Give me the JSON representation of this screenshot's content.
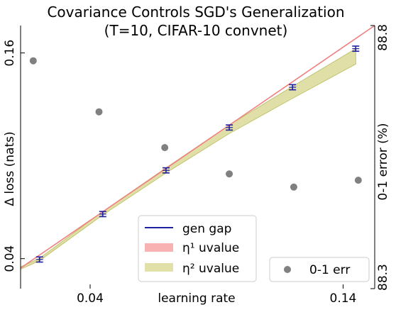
{
  "chart_data": {
    "type": "line",
    "title": "Covariance Controls SGD's Generalization",
    "subtitle": "(T=10, CIFAR-10 convnet)",
    "xlabel": "learning rate",
    "ylabel_left": "Δ loss (nats)",
    "ylabel_right": "0-1 error (%)",
    "xlim": [
      0.0125,
      0.1525
    ],
    "ylim_left": [
      0.0225,
      0.176
    ],
    "ylim_right": [
      88.3,
      88.8
    ],
    "x_ticks": [
      {
        "value": 0.04,
        "label": "0.04"
      },
      {
        "value": 0.14,
        "label": "0.14"
      }
    ],
    "y_ticks_left": [
      {
        "value": 0.04,
        "label": "0.04"
      },
      {
        "value": 0.16,
        "label": "0.16"
      }
    ],
    "y_ticks_right": [
      {
        "value": 88.3,
        "label": "88.3"
      },
      {
        "value": 88.8,
        "label": "88.8"
      }
    ],
    "legend": {
      "gen_gap": "gen gap",
      "eta1": "η¹ uvalue",
      "eta2": "η² uvalue",
      "err": "0-1 err"
    },
    "gen_gap": {
      "x": [
        0.02,
        0.045,
        0.07,
        0.095,
        0.12,
        0.145
      ],
      "y": [
        0.0395,
        0.066,
        0.0915,
        0.1165,
        0.14,
        0.1625
      ],
      "err": [
        0.0015,
        0.0015,
        0.0015,
        0.0015,
        0.0015,
        0.0015
      ]
    },
    "eta1_line": {
      "x": [
        0.0125,
        0.1525
      ],
      "y": [
        0.0345,
        0.176
      ]
    },
    "eta2_band": {
      "x": [
        0.0125,
        0.02,
        0.045,
        0.07,
        0.095,
        0.12,
        0.145
      ],
      "center": [
        0.0345,
        0.0395,
        0.0665,
        0.0915,
        0.1155,
        0.137,
        0.158
      ],
      "halfwidth": [
        0.0007,
        0.0007,
        0.001,
        0.0015,
        0.0025,
        0.0035,
        0.0045
      ]
    },
    "error_01": {
      "x": [
        0.0175,
        0.0435,
        0.0695,
        0.095,
        0.1205,
        0.146
      ],
      "y": [
        88.733,
        88.636,
        88.568,
        88.518,
        88.493,
        88.506
      ]
    },
    "colors": {
      "gen_gap": "#1f1fa0",
      "eta1": "#f08080",
      "eta1_legend": "#f9b2b2",
      "eta2": "#d4d48a",
      "eta2_edge": "#b8bc5a",
      "err": "#808080"
    }
  }
}
